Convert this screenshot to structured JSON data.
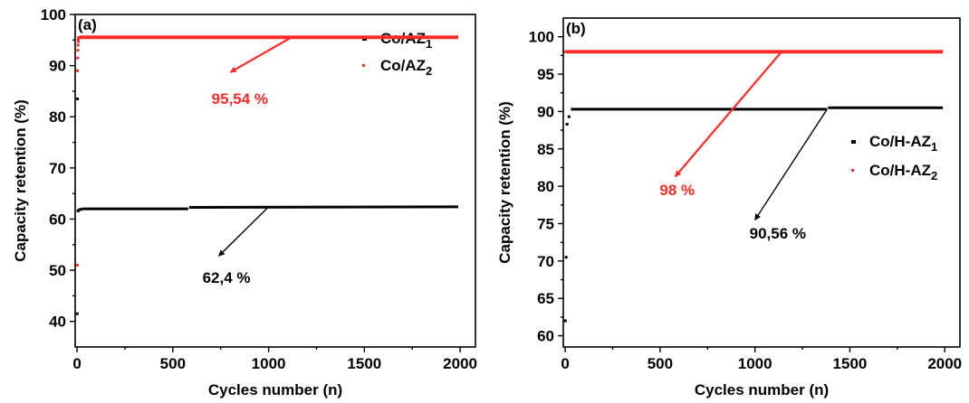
{
  "chart_data": [
    {
      "type": "scatter",
      "panel_label": "(a)",
      "xlabel": "Cycles number (n)",
      "ylabel": "Capacity retention (%)",
      "xlim": [
        -10,
        2080
      ],
      "ylim": [
        35,
        100
      ],
      "xticks": [
        0,
        500,
        1000,
        1500,
        2000
      ],
      "yticks": [
        40,
        50,
        60,
        70,
        80,
        90,
        100
      ],
      "legend_position": "top-right",
      "series": [
        {
          "name": "Co/AZ",
          "name_subscript": "1",
          "color": "#000000",
          "points": [
            [
              1,
              41.5
            ],
            [
              2,
              83.5
            ],
            [
              5,
              61.6
            ],
            [
              10,
              61.8
            ],
            [
              20,
              61.9
            ]
          ],
          "segments": [
            [
              [
                25,
                62.0
              ],
              [
                580,
                62.0
              ]
            ],
            [
              [
                585,
                62.3
              ],
              [
                1990,
                62.4
              ]
            ]
          ]
        },
        {
          "name": "Co/AZ",
          "name_subscript": "2",
          "color": "#ff2a2a",
          "points": [
            [
              1,
              51.0
            ],
            [
              2,
              89.0
            ],
            [
              3,
              91.5
            ],
            [
              4,
              93.0
            ],
            [
              5,
              94.0
            ],
            [
              6,
              94.7
            ],
            [
              7,
              95.1
            ],
            [
              8,
              95.4
            ],
            [
              10,
              95.5
            ]
          ],
          "segments": [
            [
              [
                12,
                95.54
              ],
              [
                1990,
                95.54
              ]
            ]
          ]
        }
      ],
      "annotations": [
        {
          "text": "95,54 %",
          "color": "#ff2a2a",
          "x": 850,
          "y": 82.5,
          "arrow_from": [
            1120,
            95.54
          ],
          "arrow_to": [
            800,
            88.7
          ]
        },
        {
          "text": "62,4 %",
          "color": "#000000",
          "x": 780,
          "y": 47.5,
          "arrow_from": [
            1000,
            62.4
          ],
          "arrow_to": [
            740,
            52.8
          ]
        }
      ]
    },
    {
      "type": "scatter",
      "panel_label": "(b)",
      "xlabel": "Cycles number (n)",
      "ylabel": "Capacity retention (%)",
      "xlim": [
        -10,
        2080
      ],
      "ylim": [
        58.5,
        102.5
      ],
      "xticks": [
        0,
        500,
        1000,
        1500,
        2000
      ],
      "yticks": [
        60,
        65,
        70,
        75,
        80,
        85,
        90,
        95,
        100
      ],
      "legend_position": "center-right",
      "series": [
        {
          "name": "Co/H-AZ",
          "name_subscript": "1",
          "color": "#000000",
          "points": [
            [
              1,
              62.0
            ],
            [
              5,
              70.5
            ],
            [
              10,
              88.3
            ],
            [
              20,
              89.3
            ]
          ],
          "segments": [
            [
              [
                30,
                90.3
              ],
              [
                1380,
                90.3
              ]
            ],
            [
              [
                1385,
                90.5
              ],
              [
                1990,
                90.5
              ]
            ]
          ]
        },
        {
          "name": "Co/H-AZ",
          "name_subscript": "2",
          "color": "#ff2a2a",
          "points": [
            [
              2,
              98.0
            ]
          ],
          "segments": [
            [
              [
                5,
                98.0
              ],
              [
                1990,
                98.0
              ]
            ]
          ]
        }
      ],
      "annotations": [
        {
          "text": "98 %",
          "color": "#ff2a2a",
          "x": 590,
          "y": 78.8,
          "arrow_from": [
            1140,
            98.0
          ],
          "arrow_to": [
            580,
            81.3
          ]
        },
        {
          "text": "90,56 %",
          "color": "#000000",
          "x": 1120,
          "y": 73.0,
          "arrow_from": [
            1380,
            90.3
          ],
          "arrow_to": [
            1000,
            75.5
          ]
        }
      ]
    }
  ]
}
